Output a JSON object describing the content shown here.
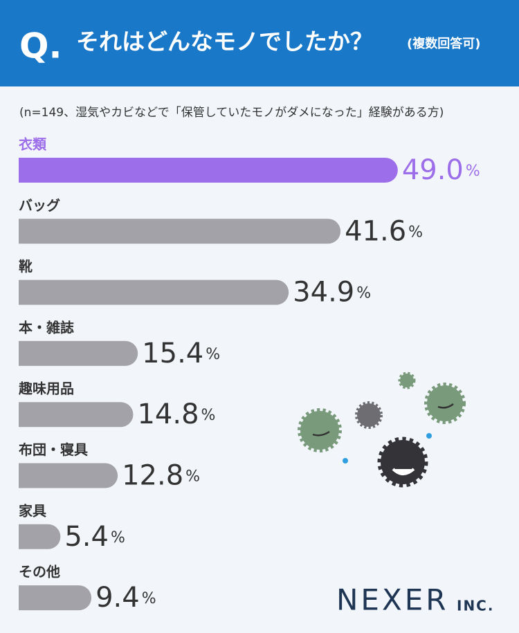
{
  "chart_data": {
    "type": "bar",
    "orientation": "horizontal",
    "title_prefix": "Q.",
    "title": "それはどんなモノでしたか？",
    "title_note": "(複数回答可)",
    "subtitle": "(n=149、湿気やカビなどで「保管していたモノがダメになった」経験がある方)",
    "categories": [
      "衣類",
      "バッグ",
      "靴",
      "本・雑誌",
      "趣味用品",
      "布団・寝具",
      "家具",
      "その他"
    ],
    "values": [
      49.0,
      41.6,
      34.9,
      15.4,
      14.8,
      12.8,
      5.4,
      9.4
    ],
    "value_labels": [
      "49.0%",
      "41.6%",
      "34.9%",
      "15.4%",
      "14.8%",
      "12.8%",
      "5.4%",
      "9.4%"
    ],
    "colors": [
      "#9d6ee9",
      "#a2a2a8",
      "#a2a2a8",
      "#a2a2a8",
      "#a2a2a8",
      "#a2a2a8",
      "#a2a2a8",
      "#a2a2a8"
    ],
    "xlim": [
      0,
      50
    ]
  },
  "brand": {
    "name": "NEXER",
    "suffix": "INC."
  }
}
